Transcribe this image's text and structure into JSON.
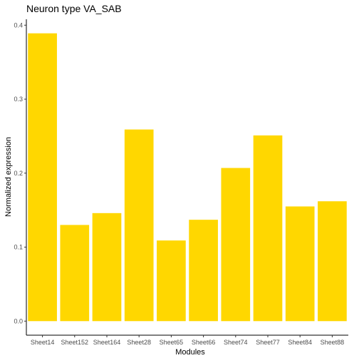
{
  "chart_data": {
    "type": "bar",
    "title": "Neuron type VA_SAB",
    "xlabel": "Modules",
    "ylabel": "Normalized expression",
    "categories": [
      "Sheet14",
      "Sheet152",
      "Sheet164",
      "Sheet28",
      "Sheet65",
      "Sheet66",
      "Sheet74",
      "Sheet77",
      "Sheet84",
      "Sheet88"
    ],
    "values": [
      0.389,
      0.13,
      0.146,
      0.259,
      0.109,
      0.137,
      0.207,
      0.251,
      0.155,
      0.162
    ],
    "yticks": [
      0.0,
      0.1,
      0.2,
      0.3,
      0.4
    ],
    "ytick_labels": [
      "0.0",
      "0.1",
      "0.2",
      "0.3",
      "0.4"
    ],
    "ylim": [
      -0.019,
      0.408
    ],
    "grid": false,
    "legend": "none",
    "bar_color": "#FFD700",
    "axis_color": "#000000",
    "tick_label_color": "#4d4d4d"
  }
}
